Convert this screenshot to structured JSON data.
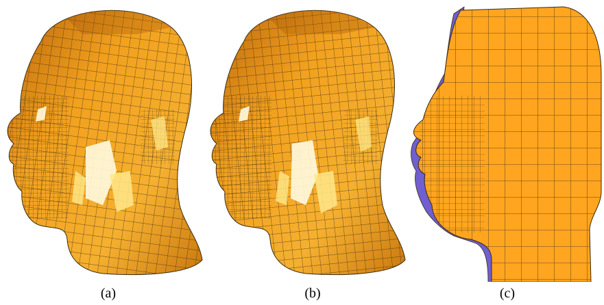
{
  "figure": {
    "panels": [
      {
        "label": "(a)",
        "kind": "quad-mesh-head"
      },
      {
        "label": "(b)",
        "kind": "quad-mesh-head"
      },
      {
        "label": "(c)",
        "kind": "cross-section-mesh"
      }
    ],
    "colors": {
      "mesh_orange": "#F2A11E",
      "mesh_dark": "#B8650B",
      "mesh_light": "#FFE88A",
      "mesh_highlight": "#FFFBE0",
      "section_orange": "#FFA51F",
      "section_side": "#6F5FCF",
      "edge": "#3a2a10"
    }
  }
}
